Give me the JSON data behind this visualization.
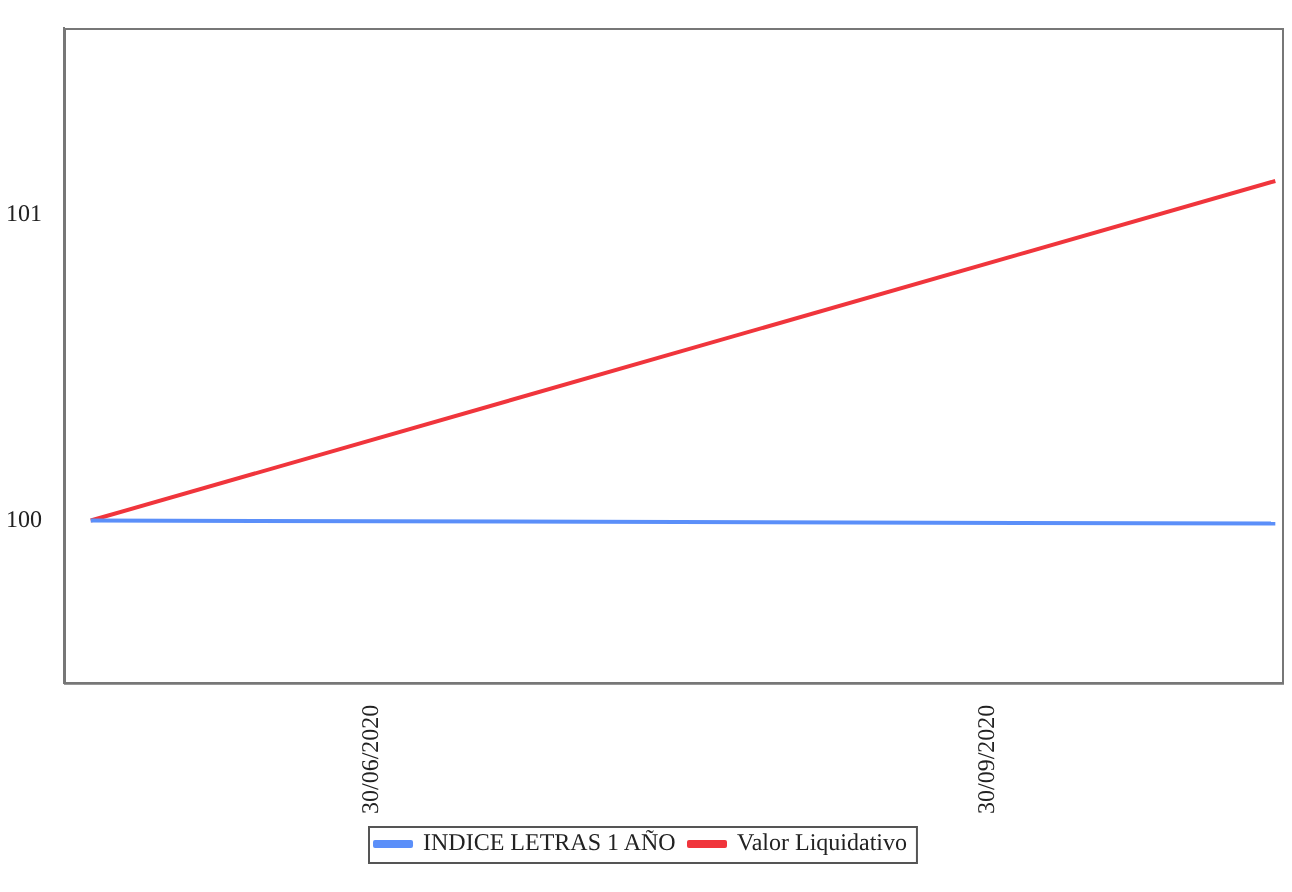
{
  "chart_data": {
    "type": "line",
    "x": [
      "2020-05-19",
      "2020-11-12"
    ],
    "series": [
      {
        "name": "INDICE LETRAS 1 AÑO",
        "color": "#5b8ff9",
        "values": [
          100,
          99.99
        ]
      },
      {
        "name": "Valor Liquidativo",
        "color": "#f0353c",
        "values": [
          100,
          101.11
        ]
      }
    ],
    "xlim": [
      "2020-05-15",
      "2020-11-13"
    ],
    "xticks": [
      {
        "value": "2020-06-30",
        "label": "30/06/2020"
      },
      {
        "value": "2020-09-30",
        "label": "30/09/2020"
      }
    ],
    "ylim": [
      99.47,
      101.61
    ],
    "yticks": [
      100,
      101
    ],
    "grid": false,
    "legend": "bottom",
    "marker": "none",
    "line_style": "solid"
  }
}
